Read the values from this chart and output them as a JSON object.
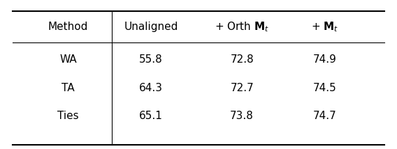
{
  "col_headers": [
    "Method",
    "Unaligned",
    "+ Orth $\\mathbf{M}_t$",
    "+ $\\mathbf{M}_t$"
  ],
  "rows": [
    [
      "WA",
      "55.8",
      "72.8",
      "74.9"
    ],
    [
      "TA",
      "64.3",
      "72.7",
      "74.5"
    ],
    [
      "Ties",
      "65.1",
      "73.8",
      "74.7"
    ]
  ],
  "fig_width": 5.68,
  "fig_height": 2.14,
  "dpi": 100
}
